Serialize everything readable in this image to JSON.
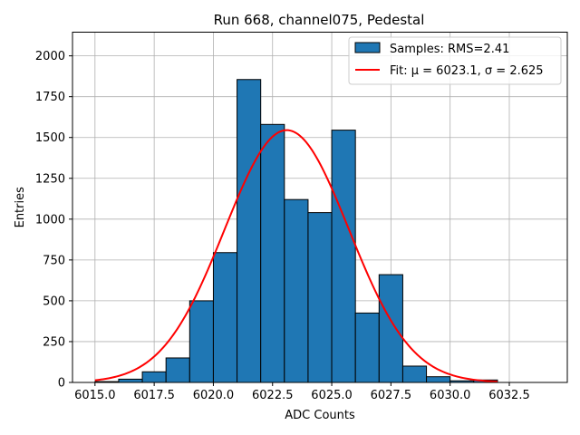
{
  "chart_data": {
    "type": "bar",
    "title": "Run 668, channel075, Pedestal",
    "xlabel": "ADC Counts",
    "ylabel": "Entries",
    "xlim": [
      6014.05,
      6034.95
    ],
    "ylim": [
      0,
      2145
    ],
    "xticks": [
      6015.0,
      6017.5,
      6020.0,
      6022.5,
      6025.0,
      6027.5,
      6030.0,
      6032.5
    ],
    "xtick_labels": [
      "6015.0",
      "6017.5",
      "6020.0",
      "6022.5",
      "6025.0",
      "6027.5",
      "6030.0",
      "6032.5"
    ],
    "yticks": [
      0,
      250,
      500,
      750,
      1000,
      1250,
      1500,
      1750,
      2000
    ],
    "ytick_labels": [
      "0",
      "250",
      "500",
      "750",
      "1000",
      "1250",
      "1500",
      "1750",
      "2000"
    ],
    "grid": true,
    "legend_position": "top-right",
    "histogram": {
      "name": "Samples: RMS=2.41",
      "color": "#1f77b4",
      "edge_color": "#000000",
      "bin_edges": [
        6015,
        6016,
        6017,
        6018,
        6019,
        6020,
        6021,
        6022,
        6023,
        6024,
        6025,
        6026,
        6027,
        6028,
        6029,
        6030,
        6031,
        6032
      ],
      "values": [
        5,
        20,
        65,
        150,
        500,
        795,
        1855,
        1580,
        1120,
        1040,
        1545,
        425,
        660,
        100,
        35,
        10,
        15
      ]
    },
    "fit": {
      "name": "Fit: μ = 6023.1, σ = 2.625",
      "color": "#ff0000",
      "mu": 6023.1,
      "sigma": 2.625,
      "amplitude": 1545,
      "x_range": [
        6015,
        6032
      ]
    }
  }
}
